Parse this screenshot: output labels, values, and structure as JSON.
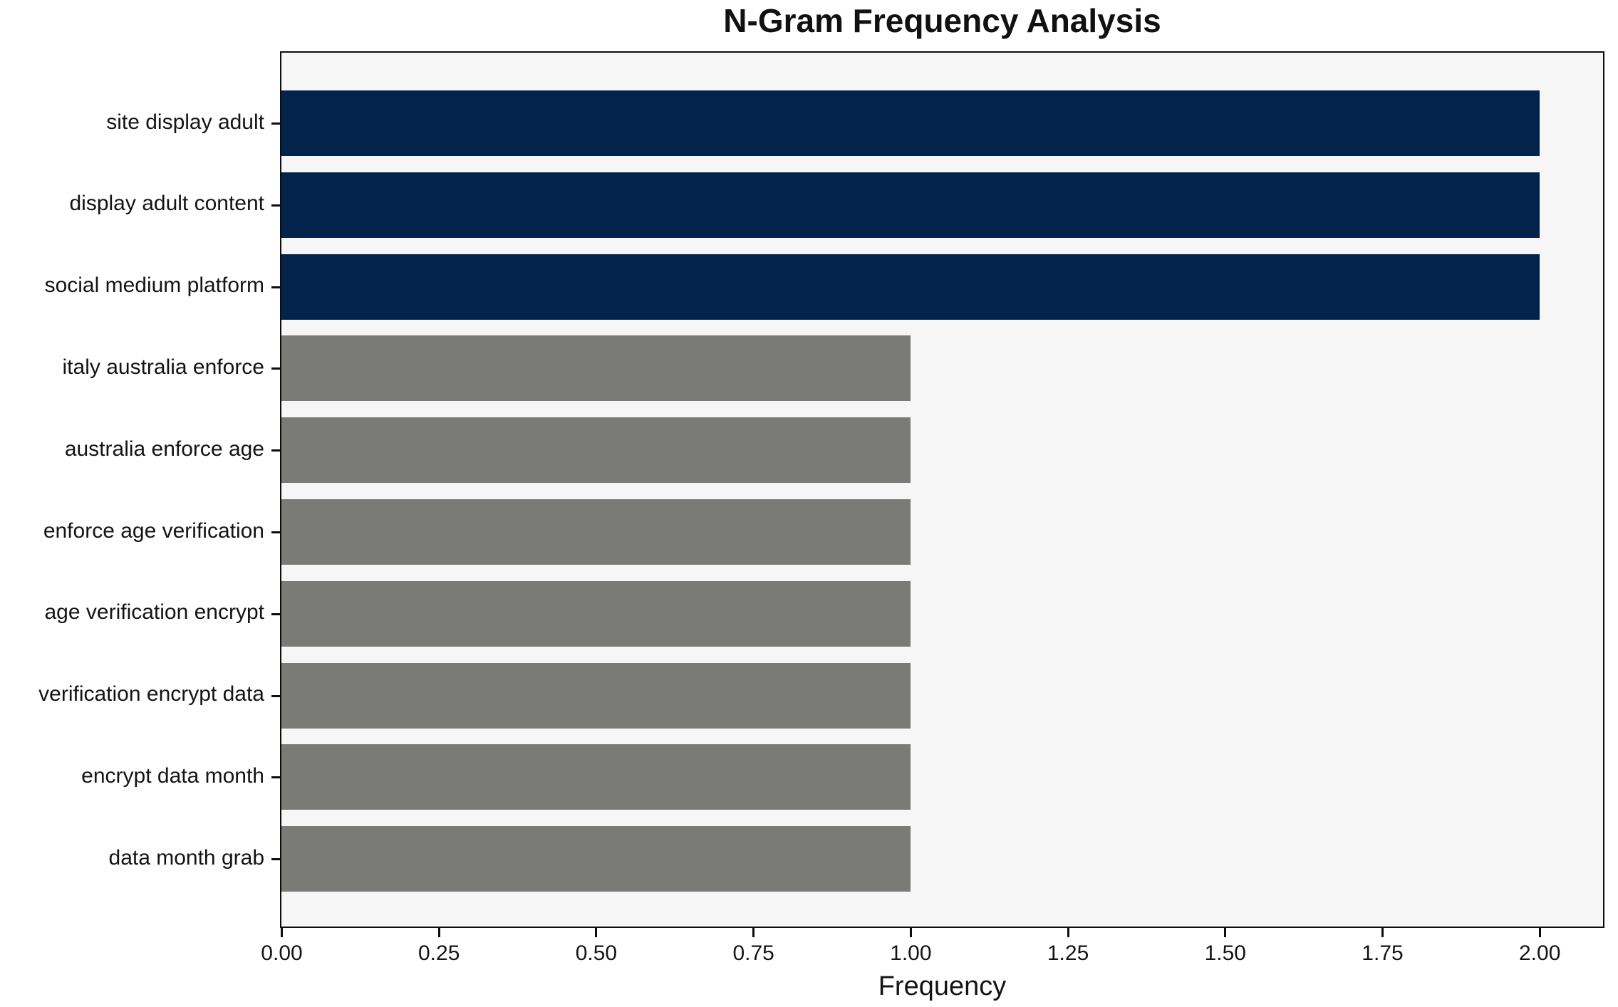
{
  "title": "N-Gram Frequency Analysis",
  "chart_data": {
    "type": "bar",
    "orientation": "horizontal",
    "title": "N-Gram Frequency Analysis",
    "xlabel": "Frequency",
    "ylabel": "",
    "categories": [
      "site display adult",
      "display adult content",
      "social medium platform",
      "italy australia enforce",
      "australia enforce age",
      "enforce age verification",
      "age verification encrypt",
      "verification encrypt data",
      "encrypt data month",
      "data month grab"
    ],
    "values": [
      2,
      2,
      2,
      1,
      1,
      1,
      1,
      1,
      1,
      1
    ],
    "bar_colors": [
      "#03224c",
      "#03224c",
      "#03224c",
      "#7a7a76",
      "#7a7a76",
      "#7a7a76",
      "#7a7a76",
      "#7a7a76",
      "#7a7a76",
      "#7a7a76"
    ],
    "colors": {
      "highlight": "#03224c",
      "default": "#7a7a76",
      "plot_background": "#f6f6f7",
      "figure_background": "#ffffff",
      "axis": "#0e0e0e"
    },
    "xlim": [
      0,
      2.1
    ],
    "xticks": [
      "0.00",
      "0.25",
      "0.50",
      "0.75",
      "1.00",
      "1.25",
      "1.50",
      "1.75",
      "2.00"
    ],
    "xtick_values": [
      0,
      0.25,
      0.5,
      0.75,
      1.0,
      1.25,
      1.5,
      1.75,
      2.0
    ],
    "grid": false,
    "legend": null
  }
}
